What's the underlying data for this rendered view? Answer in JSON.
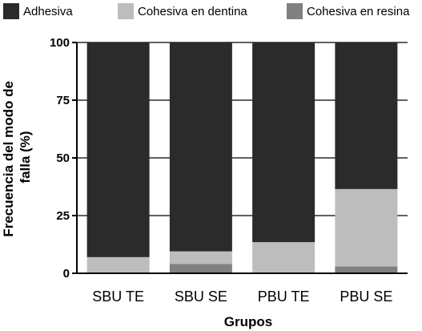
{
  "chart_data": {
    "type": "bar",
    "stacked": true,
    "percent": true,
    "categories": [
      "SBU TE",
      "SBU SE",
      "PBU TE",
      "PBU SE"
    ],
    "series": [
      {
        "name": "Cohesiva en resina",
        "color": "#808080",
        "values": [
          0,
          4,
          0,
          3
        ]
      },
      {
        "name": "Cohesiva en dentina",
        "color": "#bdbdbd",
        "values": [
          7,
          5.5,
          13.5,
          33.5
        ]
      },
      {
        "name": "Adhesiva",
        "color": "#2b2b2b",
        "values": [
          93,
          90.5,
          86.5,
          63.5
        ]
      }
    ],
    "legend_order": [
      "Adhesiva",
      "Cohesiva en dentina",
      "Cohesiva en resina"
    ],
    "legend_position": "top",
    "yticks": [
      "0",
      "25",
      "50",
      "75",
      "100"
    ],
    "ylim": [
      0,
      100
    ],
    "xlabel": "Grupos",
    "ylabel_lines": [
      "Frecuencia del modo de",
      "falla (%)"
    ],
    "grid": true
  }
}
